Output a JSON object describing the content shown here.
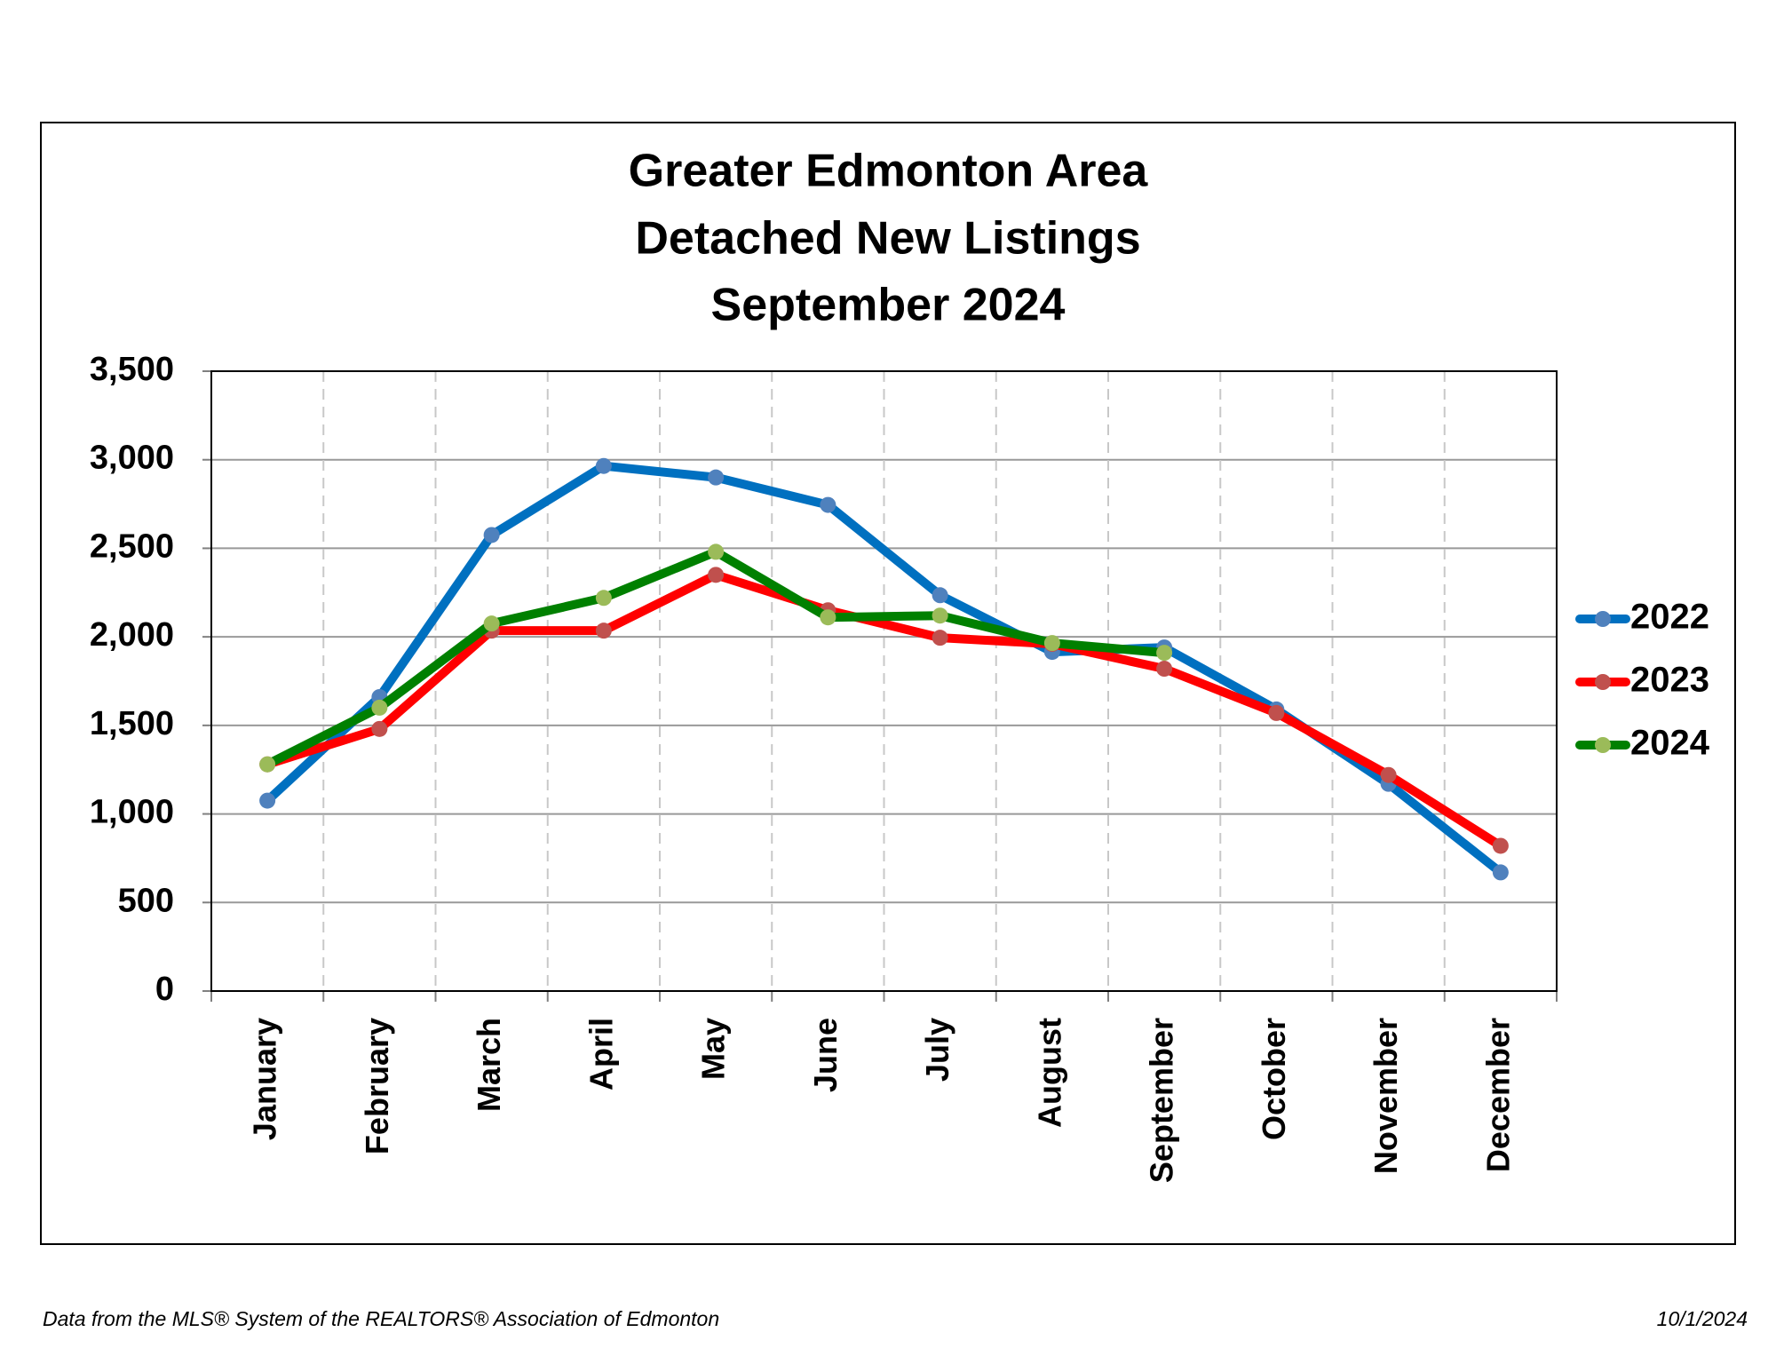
{
  "chart_data": {
    "type": "line",
    "title": [
      "Greater Edmonton Area",
      "Detached New Listings",
      "September 2024"
    ],
    "categories": [
      "January",
      "February",
      "March",
      "April",
      "May",
      "June",
      "July",
      "August",
      "September",
      "October",
      "November",
      "December"
    ],
    "series": [
      {
        "name": "2022",
        "color": "#0070c0",
        "marker_color": "#4f81bd",
        "values": [
          1075,
          1660,
          2575,
          2965,
          2900,
          2745,
          2235,
          1915,
          1940,
          1590,
          1170,
          670
        ]
      },
      {
        "name": "2023",
        "color": "#ff0000",
        "marker_color": "#c0504d",
        "values": [
          1280,
          1480,
          2035,
          2035,
          2350,
          2150,
          1995,
          1960,
          1820,
          1570,
          1220,
          820
        ]
      },
      {
        "name": "2024",
        "color": "#008000",
        "marker_color": "#9bbb59",
        "values": [
          1280,
          1600,
          2075,
          2220,
          2480,
          2110,
          2120,
          1965,
          1910,
          null,
          null,
          null
        ]
      }
    ],
    "ylim": [
      0,
      3500
    ],
    "yticks": [
      0,
      500,
      {
        "value": 1000,
        "label": "1,000"
      },
      {
        "value": 1500,
        "label": "1,500"
      },
      {
        "value": 2000,
        "label": "2,000"
      },
      {
        "value": 2500,
        "label": "2,500"
      },
      {
        "value": 3000,
        "label": "3,000"
      },
      {
        "value": 3500,
        "label": "3,500"
      }
    ],
    "grid": true,
    "legend": "right"
  },
  "footer": {
    "source": "Data from the MLS® System of the REALTORS® Association of Edmonton",
    "date": "10/1/2024"
  }
}
